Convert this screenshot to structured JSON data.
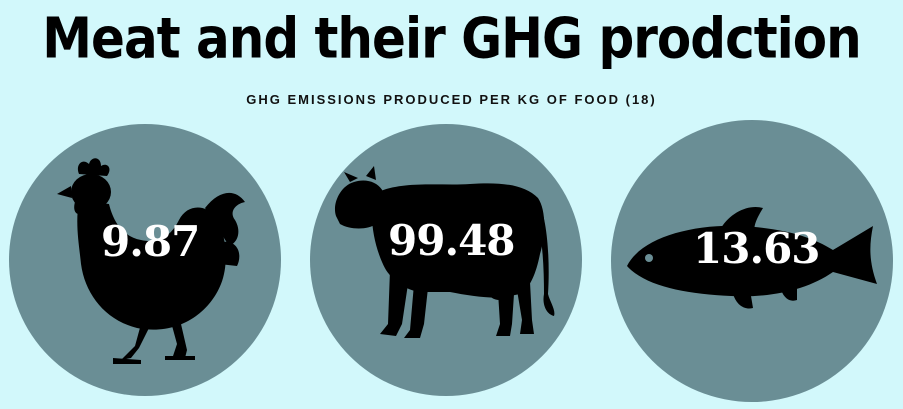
{
  "header": {
    "title": "Meat and their GHG prodction",
    "subtitle": "GHG EMISSIONS PRODUCED PER KG OF FOOD (18)"
  },
  "items": [
    {
      "icon": "chicken-icon",
      "value": "9.87"
    },
    {
      "icon": "cow-icon",
      "value": "99.48"
    },
    {
      "icon": "fish-icon",
      "value": "13.63"
    }
  ],
  "colors": {
    "background": "#d2f8fb",
    "circle": "#6a8e95",
    "silhouette": "#000000",
    "value_text": "#ffffff"
  }
}
